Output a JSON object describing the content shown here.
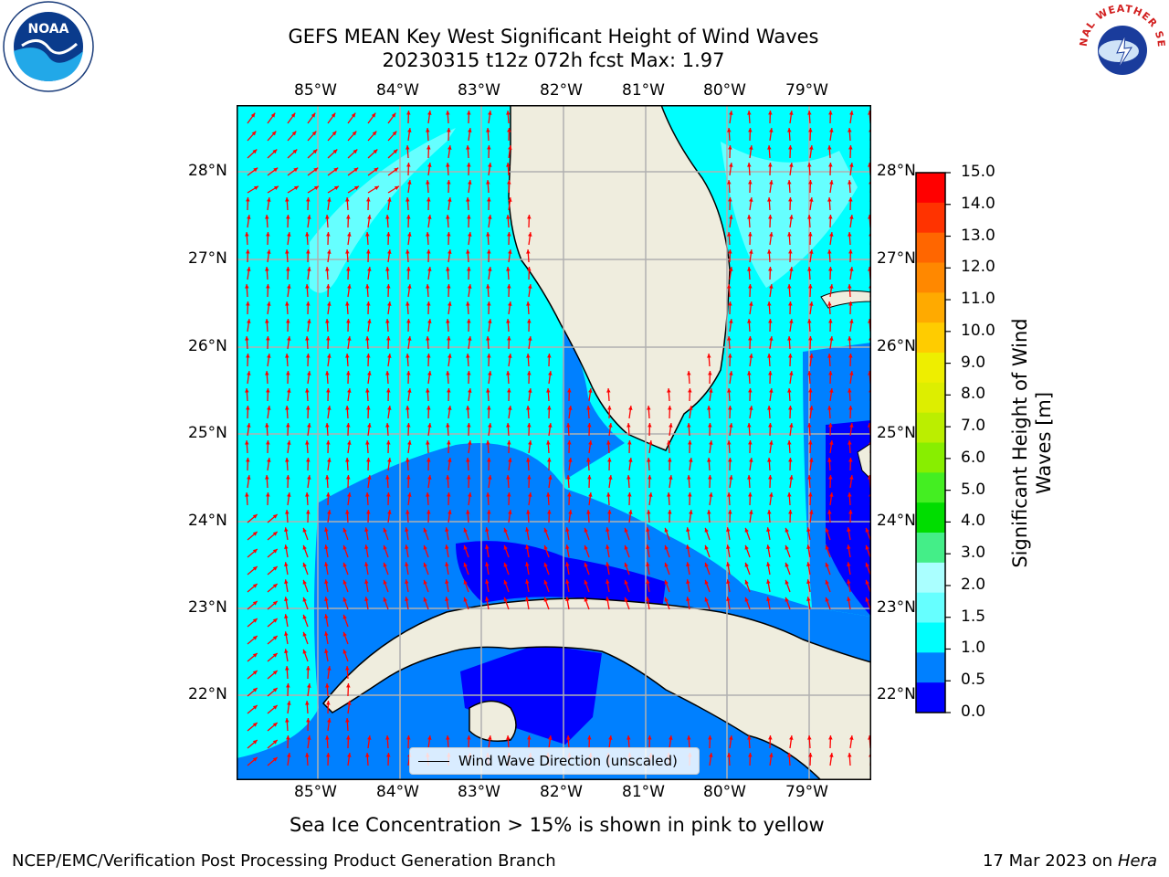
{
  "title": {
    "line1": "GEFS MEAN Key West Significant Height of Wind Waves",
    "line2": "20230315 t12z 072h fcst   Max: 1.97"
  },
  "lon_ticks": [
    "85°W",
    "84°W",
    "83°W",
    "82°W",
    "81°W",
    "80°W",
    "79°W"
  ],
  "lat_ticks": [
    "28°N",
    "27°N",
    "26°N",
    "25°N",
    "24°N",
    "23°N",
    "22°N"
  ],
  "colorbar": {
    "label_line1": "Significant Height of Wind",
    "label_line2": "Waves [m]",
    "ticks": [
      "15.0",
      "14.0",
      "13.0",
      "12.0",
      "11.0",
      "10.0",
      "9.0",
      "8.0",
      "7.0",
      "6.0",
      "5.0",
      "4.0",
      "3.0",
      "2.0",
      "1.5",
      "1.0",
      "0.5",
      "0.0"
    ],
    "colors": [
      "#ff0000",
      "#ff3300",
      "#ff6600",
      "#ff8800",
      "#ffaa00",
      "#ffcc00",
      "#eeee00",
      "#ddee00",
      "#bbee00",
      "#88ee00",
      "#44ee22",
      "#00dd00",
      "#44ee88",
      "#aaffff",
      "#66ffff",
      "#00ffff",
      "#0080ff",
      "#0000ff"
    ]
  },
  "map": {
    "legend": "Wind Wave Direction (unscaled)",
    "colors": {
      "deep": "#0000ff",
      "mid": "#0080ff",
      "light": "#00ffff",
      "pale": "#66ffff",
      "land": "#efedde",
      "arrow": "#ff0000",
      "grid": "#b0b0b0"
    }
  },
  "caption": "Sea Ice Concentration > 15% is shown in pink to yellow",
  "footer_left": "NCEP/EMC/Verification Post Processing Product Generation Branch",
  "footer_right_date": "17 Mar 2023 on",
  "footer_right_host": "Hera",
  "logos": {
    "left_text": "NOAA",
    "right_text": "NATIONAL WEATHER SERVICE"
  }
}
